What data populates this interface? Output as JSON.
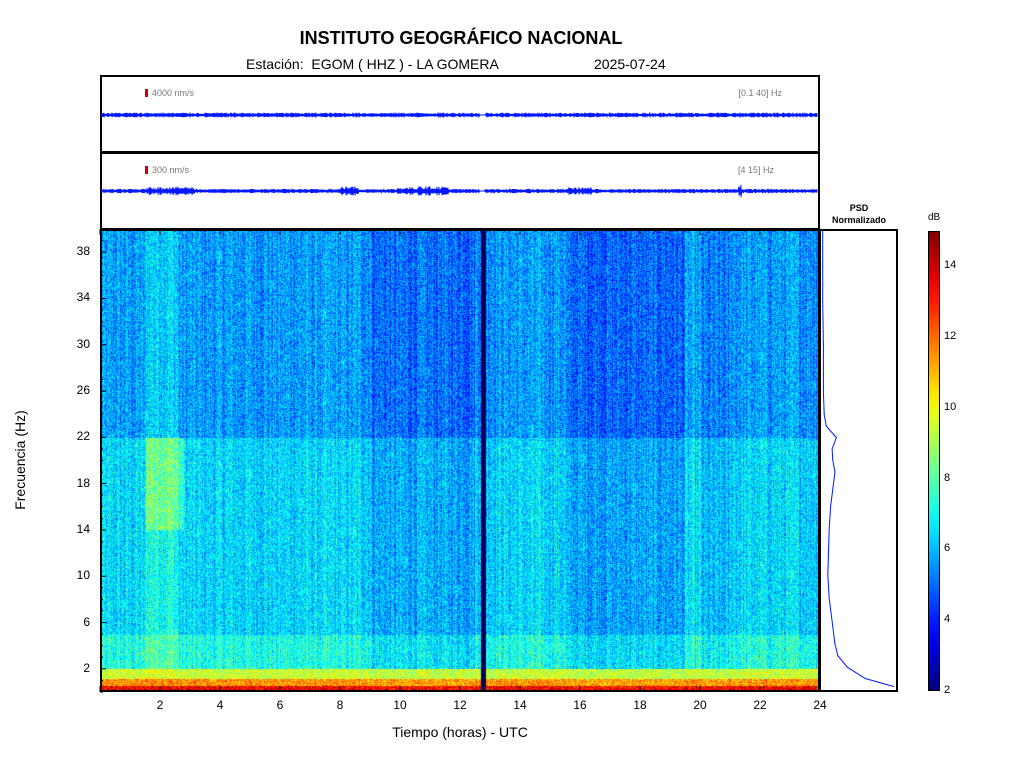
{
  "header": {
    "title": "INSTITUTO GEOGRÁFICO NACIONAL",
    "station": "Estación:  EGOM ( HHZ ) - LA GOMERA",
    "date": "2025-07-24"
  },
  "traces": [
    {
      "amplitude_label": "4000 nm/s",
      "filter_label": "[0.1 40] Hz",
      "color": "#0018ff"
    },
    {
      "amplitude_label": "300 nm/s",
      "filter_label": "[4 15] Hz",
      "color": "#0018ff"
    }
  ],
  "psd": {
    "title_line1": "PSD",
    "title_line2": "Normalizado"
  },
  "colorbar": {
    "unit": "dB",
    "min": 2,
    "max": 15,
    "ticks": [
      2,
      4,
      6,
      8,
      10,
      12,
      14
    ]
  },
  "chart_data": {
    "type": "heatmap",
    "title": "INSTITUTO GEOGRÁFICO NACIONAL",
    "xlabel": "Tiempo (horas) - UTC",
    "ylabel": "Frecuencia  (Hz)",
    "xlim": [
      0,
      24
    ],
    "ylim": [
      0,
      40
    ],
    "xticks": [
      2,
      4,
      6,
      8,
      10,
      12,
      14,
      16,
      18,
      20,
      22,
      24
    ],
    "yticks": [
      2,
      6,
      10,
      14,
      18,
      22,
      26,
      30,
      34,
      38
    ],
    "data_gap_hours": [
      12.7,
      12.85
    ],
    "psd_curve": {
      "frequency_hz": [
        0.3,
        1,
        2,
        3,
        4,
        5,
        6,
        7,
        8,
        10,
        12,
        14,
        16,
        18,
        19,
        20,
        21,
        22,
        23,
        24,
        26,
        30,
        34,
        38,
        40
      ],
      "normalized": [
        1.0,
        0.6,
        0.35,
        0.22,
        0.18,
        0.16,
        0.14,
        0.12,
        0.1,
        0.08,
        0.09,
        0.1,
        0.12,
        0.16,
        0.18,
        0.15,
        0.14,
        0.2,
        0.06,
        0.03,
        0.02,
        0.02,
        0.01,
        0.01,
        0.01
      ]
    }
  }
}
